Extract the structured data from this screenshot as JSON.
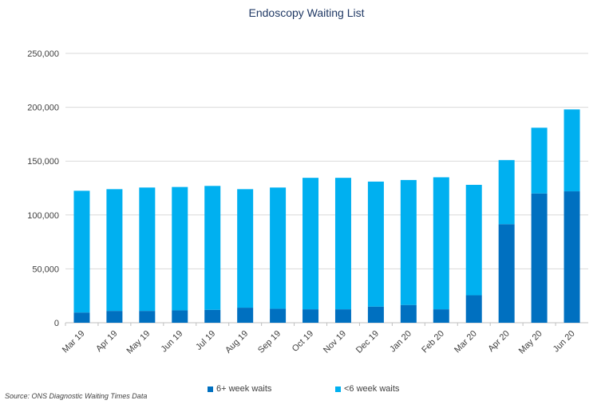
{
  "chart_data": {
    "type": "bar",
    "stacked": true,
    "title": "Endoscopy Waiting List",
    "xlabel": "",
    "ylabel": "",
    "ylim": [
      0,
      250000
    ],
    "yticks": [
      "0",
      "50,000",
      "100,000",
      "150,000",
      "200,000",
      "250,000"
    ],
    "grid": true,
    "legend_position": "bottom",
    "categories": [
      "Mar 19",
      "Apr 19",
      "May 19",
      "Jun 19",
      "Jul 19",
      "Aug 19",
      "Sep 19",
      "Oct 19",
      "Nov 19",
      "Dec 19",
      "Jan 20",
      "Feb 20",
      "Mar 20",
      "Apr 20",
      "May 20",
      "Jun 20"
    ],
    "series": [
      {
        "name": "6+ week waits",
        "color": "#0070c0",
        "values": [
          9500,
          11000,
          11000,
          11500,
          12000,
          14000,
          13000,
          12500,
          12500,
          15000,
          16500,
          12500,
          25500,
          91500,
          120000,
          122000
        ]
      },
      {
        "name": "<6 week waits",
        "color": "#00b0f0",
        "values": [
          113000,
          113000,
          114500,
          114500,
          115000,
          110000,
          112500,
          122000,
          122000,
          116000,
          116000,
          122500,
          102500,
          59500,
          61000,
          76000
        ]
      }
    ]
  },
  "source": "Source: ONS Diagnostic Waiting Times Data"
}
